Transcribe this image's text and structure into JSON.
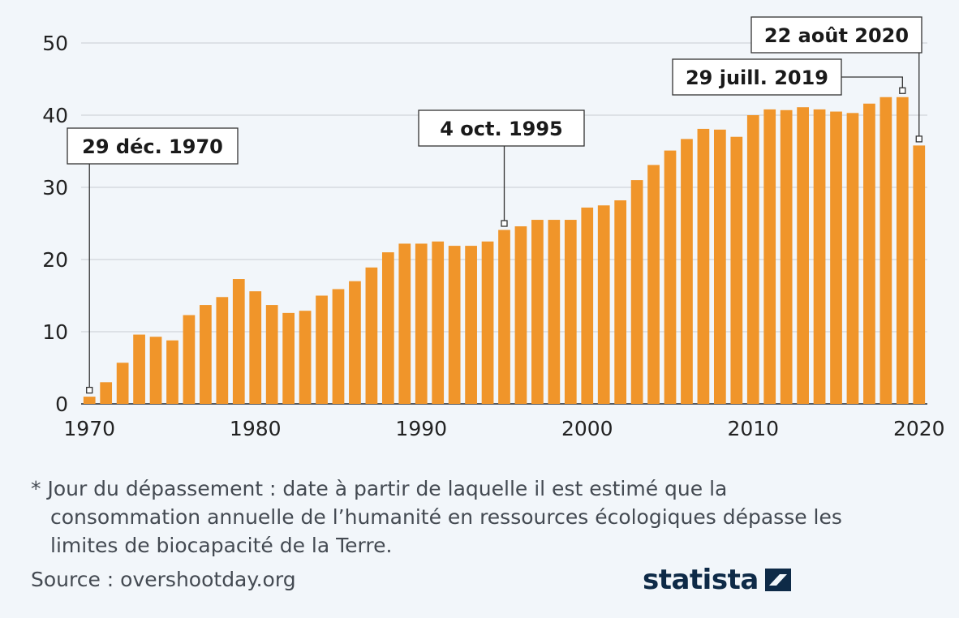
{
  "footnote": {
    "line1": "* Jour du dépassement : date à partir de laquelle il est estimé que la",
    "line2": "consommation annuelle de l’humanité en ressources écologiques dépasse les",
    "line3": "limites de biocapacité de la Terre."
  },
  "source": "Source : overshootday.org",
  "brand": {
    "name": "statista",
    "icon": "statista-logo-icon",
    "color": "#0e2a47"
  },
  "colors": {
    "bar": "#f0952a",
    "grid": "#c8ccd1",
    "text": "#222222",
    "background": "#f2f6fa"
  },
  "chart_data": {
    "type": "bar",
    "title": "",
    "xlabel": "",
    "ylabel": "",
    "ylim": [
      0,
      50
    ],
    "yticks": [
      0,
      10,
      20,
      30,
      40,
      50
    ],
    "xticks": [
      1970,
      1980,
      1990,
      2000,
      2010,
      2020
    ],
    "grid": true,
    "x": [
      1970,
      1971,
      1972,
      1973,
      1974,
      1975,
      1976,
      1977,
      1978,
      1979,
      1980,
      1981,
      1982,
      1983,
      1984,
      1985,
      1986,
      1987,
      1988,
      1989,
      1990,
      1991,
      1992,
      1993,
      1994,
      1995,
      1996,
      1997,
      1998,
      1999,
      2000,
      2001,
      2002,
      2003,
      2004,
      2005,
      2006,
      2007,
      2008,
      2009,
      2010,
      2011,
      2012,
      2013,
      2014,
      2015,
      2016,
      2017,
      2018,
      2019,
      2020
    ],
    "values": [
      1.0,
      3.0,
      5.7,
      9.6,
      9.3,
      8.8,
      12.3,
      13.7,
      14.8,
      17.3,
      15.6,
      13.7,
      12.6,
      12.9,
      15.0,
      15.9,
      17.0,
      18.9,
      21.0,
      22.2,
      22.2,
      22.5,
      21.9,
      21.9,
      22.5,
      24.1,
      24.6,
      25.5,
      25.5,
      25.5,
      27.2,
      27.5,
      28.2,
      31.0,
      33.1,
      35.1,
      36.7,
      38.1,
      38.0,
      37.0,
      40.0,
      40.8,
      40.7,
      41.1,
      40.8,
      40.5,
      40.3,
      41.6,
      42.5,
      42.5,
      35.8
    ],
    "annotations": [
      {
        "x": 1970,
        "label": "29 déc. 1970"
      },
      {
        "x": 1995,
        "label": "4 oct. 1995"
      },
      {
        "x": 2019,
        "label": "29 juill. 2019"
      },
      {
        "x": 2020,
        "label": "22 août 2020"
      }
    ]
  }
}
